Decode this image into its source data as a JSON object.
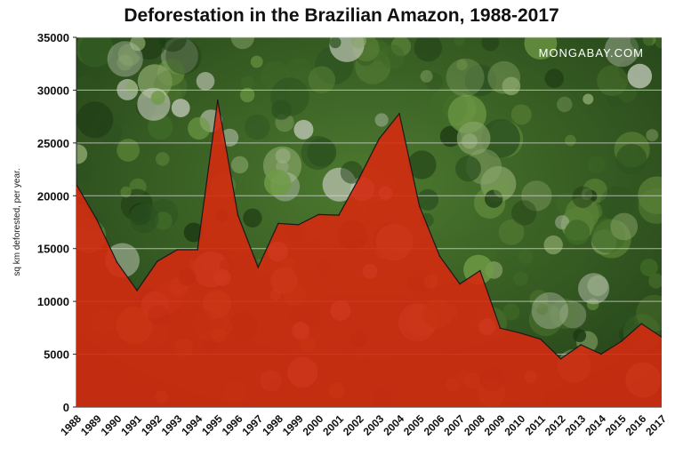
{
  "watermark": "MONGABAY.COM",
  "colors": {
    "area": "#d42a10",
    "forest_dark": "#1d3a14",
    "forest_mid": "#3f6a27",
    "forest_light": "#6f9a45",
    "grid": "#d8d8d8"
  },
  "chart_data": {
    "type": "area",
    "title": "Deforestation in the Brazilian Amazon, 1988-2017",
    "xlabel": "",
    "ylabel": "sq km deforested, per year.",
    "ylim": [
      0,
      35000
    ],
    "yticks": [
      0,
      5000,
      10000,
      15000,
      20000,
      25000,
      30000,
      35000
    ],
    "grid": true,
    "x": [
      "1988",
      "1989",
      "1990",
      "1991",
      "1992",
      "1993",
      "1994",
      "1995",
      "1996",
      "1997",
      "1998",
      "1999",
      "2000",
      "2001",
      "2002",
      "2003",
      "2004",
      "2005",
      "2006",
      "2007",
      "2008",
      "2009",
      "2010",
      "2011",
      "2012",
      "2013",
      "2014",
      "2015",
      "2016",
      "2017"
    ],
    "series": [
      {
        "values": [
          21050,
          17770,
          13730,
          11030,
          13786,
          14896,
          14896,
          29059,
          18161,
          13227,
          17383,
          17259,
          18226,
          18165,
          21651,
          25396,
          27772,
          19014,
          14286,
          11651,
          12911,
          7464,
          7000,
          6418,
          4571,
          5891,
          5012,
          6207,
          7893,
          6624
        ]
      }
    ]
  }
}
